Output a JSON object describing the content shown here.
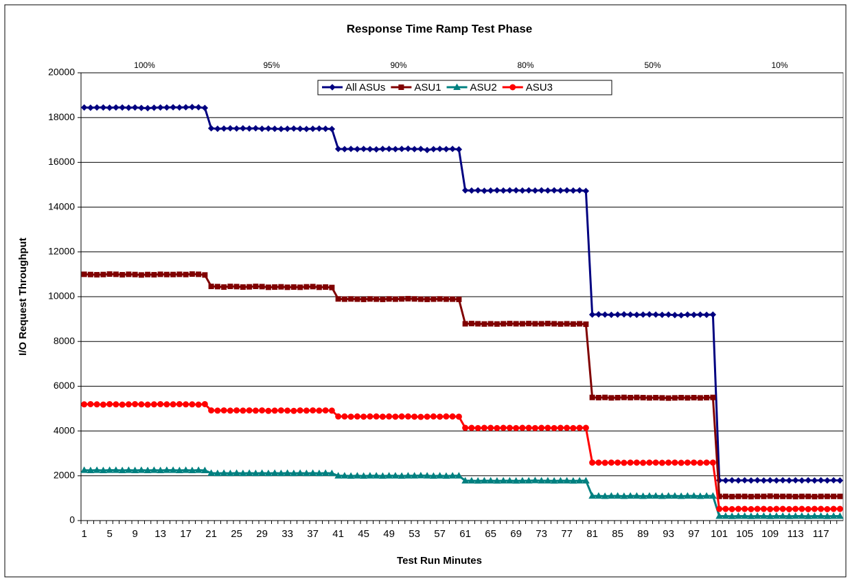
{
  "chart_data": {
    "type": "line",
    "title": "Response Time Ramp Test Phase",
    "x_label": "Test Run Minutes",
    "y_label": "I/O Request Throughput",
    "phases": [
      "100%",
      "95%",
      "90%",
      "80%",
      "50%",
      "10%"
    ],
    "categories": [
      "1",
      null,
      null,
      null,
      "5",
      null,
      null,
      null,
      "9",
      null,
      null,
      null,
      "13",
      null,
      null,
      null,
      "17",
      null,
      null,
      null,
      "21",
      null,
      null,
      null,
      "25",
      null,
      null,
      null,
      "29",
      null,
      null,
      null,
      "33",
      null,
      null,
      null,
      "37",
      null,
      null,
      null,
      "41",
      null,
      null,
      null,
      "45",
      null,
      null,
      null,
      "49",
      null,
      null,
      null,
      "53",
      null,
      null,
      null,
      "57",
      null,
      null,
      null,
      "61",
      null,
      null,
      null,
      "65",
      null,
      null,
      null,
      "69",
      null,
      null,
      null,
      "73",
      null,
      null,
      null,
      "77",
      null,
      null,
      null,
      "81",
      null,
      null,
      null,
      "85",
      null,
      null,
      null,
      "89",
      null,
      null,
      null,
      "93",
      null,
      null,
      null,
      "97",
      null,
      null,
      null,
      "101",
      null,
      null,
      null,
      "105",
      null,
      null,
      null,
      "109",
      null,
      null,
      null,
      "113",
      null,
      null,
      null,
      "117",
      null,
      null,
      null
    ],
    "ylim": [
      0,
      20000
    ],
    "yticks": [
      0,
      2000,
      4000,
      6000,
      8000,
      10000,
      12000,
      14000,
      16000,
      18000,
      20000
    ],
    "grid": true,
    "series": [
      {
        "name": "All ASUs",
        "color": "#000080",
        "marker": "diamond",
        "values": [
          18450,
          18440,
          18450,
          18450,
          18440,
          18450,
          18450,
          18440,
          18450,
          18430,
          18420,
          18440,
          18450,
          18450,
          18460,
          18450,
          18460,
          18470,
          18460,
          18430,
          17520,
          17500,
          17510,
          17520,
          17510,
          17520,
          17510,
          17520,
          17500,
          17510,
          17500,
          17490,
          17500,
          17510,
          17500,
          17490,
          17500,
          17510,
          17500,
          17490,
          16600,
          16590,
          16600,
          16590,
          16600,
          16590,
          16580,
          16600,
          16600,
          16590,
          16600,
          16610,
          16590,
          16600,
          16550,
          16590,
          16600,
          16590,
          16600,
          16580,
          14750,
          14740,
          14750,
          14730,
          14740,
          14750,
          14740,
          14750,
          14750,
          14740,
          14750,
          14740,
          14750,
          14740,
          14750,
          14740,
          14750,
          14740,
          14750,
          14720,
          9200,
          9210,
          9200,
          9190,
          9200,
          9210,
          9200,
          9190,
          9200,
          9210,
          9200,
          9190,
          9200,
          9180,
          9170,
          9200,
          9190,
          9200,
          9190,
          9200,
          1800,
          1790,
          1800,
          1790,
          1800,
          1790,
          1800,
          1790,
          1800,
          1790,
          1800,
          1790,
          1800,
          1790,
          1800,
          1790,
          1800,
          1790,
          1800,
          1790
        ]
      },
      {
        "name": "ASU1",
        "color": "#800000",
        "marker": "square",
        "values": [
          11000,
          10990,
          10980,
          10990,
          11010,
          11000,
          10980,
          11000,
          10990,
          10970,
          10990,
          10980,
          11000,
          10990,
          10990,
          11000,
          10990,
          11010,
          11000,
          10970,
          10460,
          10450,
          10430,
          10460,
          10450,
          10430,
          10440,
          10460,
          10450,
          10420,
          10430,
          10440,
          10420,
          10430,
          10420,
          10440,
          10450,
          10420,
          10430,
          10410,
          9900,
          9890,
          9900,
          9890,
          9880,
          9900,
          9890,
          9880,
          9900,
          9890,
          9900,
          9910,
          9900,
          9890,
          9880,
          9890,
          9900,
          9890,
          9890,
          9880,
          8790,
          8800,
          8790,
          8780,
          8790,
          8780,
          8790,
          8800,
          8790,
          8790,
          8800,
          8790,
          8790,
          8800,
          8790,
          8780,
          8790,
          8780,
          8790,
          8770,
          5500,
          5490,
          5500,
          5480,
          5490,
          5500,
          5490,
          5500,
          5490,
          5480,
          5490,
          5480,
          5470,
          5480,
          5490,
          5480,
          5490,
          5480,
          5490,
          5500,
          1080,
          1080,
          1070,
          1080,
          1080,
          1070,
          1080,
          1080,
          1090,
          1080,
          1080,
          1080,
          1070,
          1080,
          1080,
          1070,
          1080,
          1080,
          1080,
          1080
        ]
      },
      {
        "name": "ASU2",
        "color": "#008080",
        "marker": "triangle",
        "values": [
          2250,
          2240,
          2250,
          2240,
          2250,
          2250,
          2240,
          2250,
          2240,
          2250,
          2240,
          2250,
          2240,
          2250,
          2250,
          2240,
          2250,
          2240,
          2250,
          2240,
          2120,
          2110,
          2120,
          2110,
          2120,
          2110,
          2120,
          2110,
          2120,
          2110,
          2120,
          2110,
          2120,
          2110,
          2120,
          2110,
          2120,
          2110,
          2120,
          2110,
          2000,
          2000,
          1990,
          2000,
          1990,
          2000,
          2000,
          1990,
          2000,
          2000,
          1990,
          2000,
          2000,
          2010,
          2000,
          1990,
          2000,
          1990,
          2000,
          2000,
          1780,
          1780,
          1770,
          1780,
          1780,
          1770,
          1780,
          1780,
          1770,
          1780,
          1780,
          1790,
          1780,
          1780,
          1770,
          1780,
          1780,
          1770,
          1780,
          1780,
          1100,
          1100,
          1090,
          1100,
          1100,
          1090,
          1100,
          1100,
          1090,
          1100,
          1100,
          1090,
          1100,
          1100,
          1090,
          1100,
          1100,
          1090,
          1100,
          1100,
          200,
          200,
          190,
          200,
          200,
          190,
          200,
          200,
          190,
          200,
          200,
          190,
          200,
          200,
          190,
          200,
          200,
          190,
          200,
          200
        ]
      },
      {
        "name": "ASU3",
        "color": "#ff0000",
        "marker": "circle",
        "values": [
          5190,
          5200,
          5190,
          5180,
          5200,
          5190,
          5180,
          5190,
          5200,
          5190,
          5180,
          5190,
          5200,
          5190,
          5190,
          5200,
          5190,
          5190,
          5180,
          5200,
          4920,
          4910,
          4920,
          4910,
          4920,
          4910,
          4920,
          4910,
          4920,
          4900,
          4910,
          4920,
          4910,
          4900,
          4920,
          4910,
          4920,
          4910,
          4920,
          4910,
          4650,
          4650,
          4640,
          4650,
          4640,
          4650,
          4650,
          4640,
          4650,
          4640,
          4650,
          4650,
          4640,
          4630,
          4640,
          4650,
          4640,
          4650,
          4650,
          4640,
          4140,
          4140,
          4130,
          4140,
          4140,
          4130,
          4140,
          4140,
          4130,
          4140,
          4140,
          4130,
          4140,
          4140,
          4130,
          4140,
          4140,
          4130,
          4140,
          4140,
          2590,
          2590,
          2580,
          2590,
          2590,
          2580,
          2590,
          2590,
          2580,
          2590,
          2590,
          2580,
          2590,
          2590,
          2580,
          2590,
          2590,
          2580,
          2590,
          2590,
          520,
          520,
          510,
          520,
          520,
          510,
          520,
          520,
          510,
          520,
          520,
          510,
          520,
          520,
          510,
          520,
          520,
          510,
          520,
          520
        ]
      }
    ]
  }
}
